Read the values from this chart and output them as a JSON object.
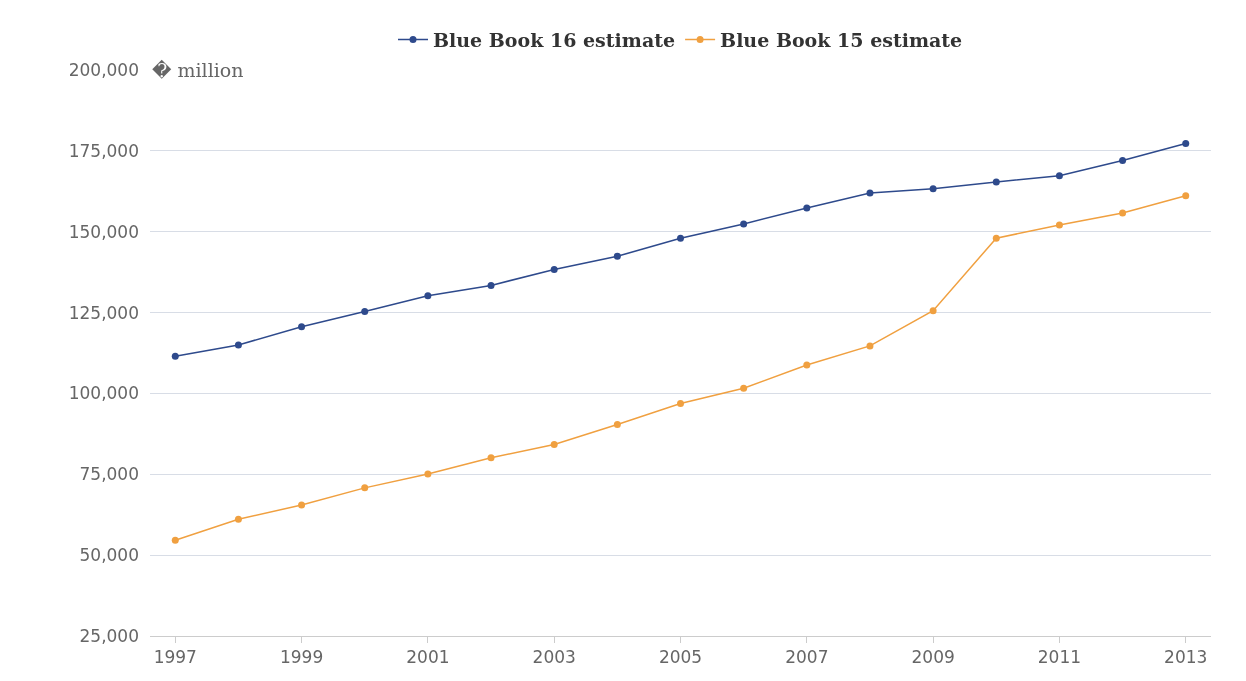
{
  "chart_data": {
    "type": "line",
    "ylabel": "� million",
    "x": [
      1997,
      1998,
      1999,
      2000,
      2001,
      2002,
      2003,
      2004,
      2005,
      2006,
      2007,
      2008,
      2009,
      2010,
      2011,
      2012,
      2013
    ],
    "series": [
      {
        "name": "Blue Book 16 estimate",
        "color": "#2e4a8c",
        "values": [
          111500,
          115000,
          120600,
          125300,
          130200,
          133400,
          138300,
          142400,
          148000,
          152400,
          157300,
          162000,
          163300,
          165400,
          167300,
          172000,
          177300
        ]
      },
      {
        "name": "Blue Book 15 estimate",
        "color": "#f0a040",
        "values": [
          54600,
          61100,
          65500,
          70800,
          75100,
          80100,
          84200,
          90400,
          96900,
          101600,
          108800,
          114700,
          125600,
          148000,
          152100,
          155800,
          161100
        ]
      }
    ],
    "xlim": [
      1996.6,
      2013.4
    ],
    "xticks": [
      1997,
      1999,
      2001,
      2003,
      2005,
      2007,
      2009,
      2011,
      2013
    ],
    "ylim": [
      25000,
      200000
    ],
    "yticks": [
      {
        "value": 25000,
        "label": "25,000"
      },
      {
        "value": 50000,
        "label": "50,000"
      },
      {
        "value": 75000,
        "label": "75,000"
      },
      {
        "value": 100000,
        "label": "100,000"
      },
      {
        "value": 125000,
        "label": "125,000"
      },
      {
        "value": 150000,
        "label": "150,000"
      },
      {
        "value": 175000,
        "label": "175,000"
      },
      {
        "value": 200000,
        "label": "200,000"
      }
    ],
    "grid": "y",
    "legend": "top",
    "marker": "circle",
    "line_style": "solid"
  }
}
